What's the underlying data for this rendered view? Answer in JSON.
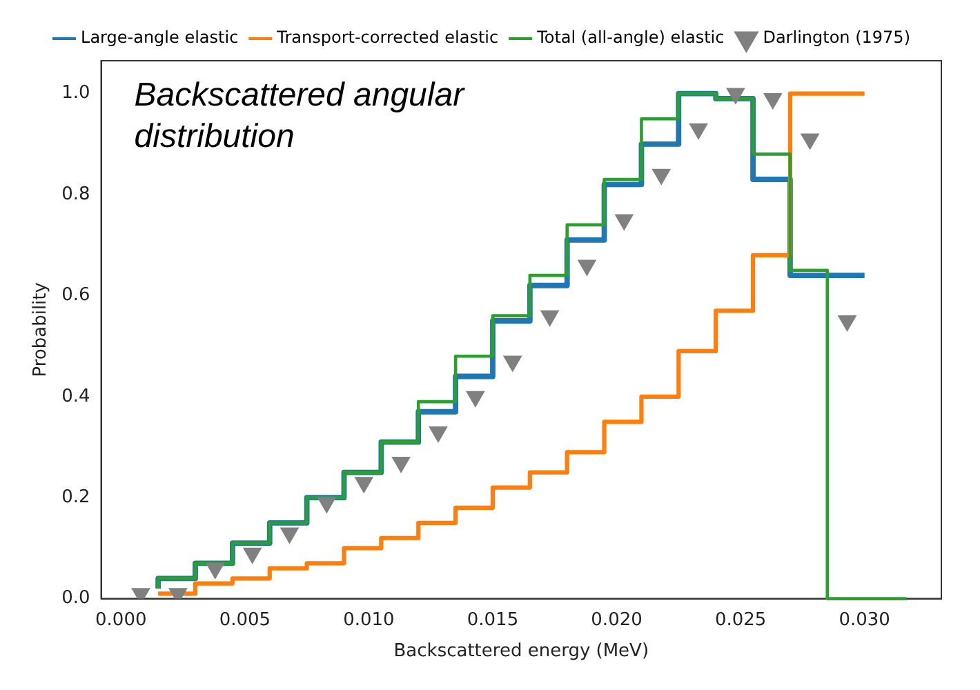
{
  "chart_data": {
    "type": "step",
    "xlabel": "Backscattered energy (MeV)",
    "ylabel": "Probability",
    "annotations": [
      "Backscattered angular distribution"
    ],
    "xlim": [
      -0.0008,
      0.0331
    ],
    "ylim": [
      0,
      1.065
    ],
    "xticks": [
      {
        "value": 0,
        "label": "0.000"
      },
      {
        "value": 0.005,
        "label": "0.005"
      },
      {
        "value": 0.01,
        "label": "0.010"
      },
      {
        "value": 0.015,
        "label": "0.015"
      },
      {
        "value": 0.02,
        "label": "0.020"
      },
      {
        "value": 0.025,
        "label": "0.025"
      },
      {
        "value": 0.03,
        "label": "0.030"
      }
    ],
    "yticks": [
      {
        "value": 0,
        "label": "0.0"
      },
      {
        "value": 0.2,
        "label": "0.2"
      },
      {
        "value": 0.4,
        "label": "0.4"
      },
      {
        "value": 0.6,
        "label": "0.6"
      },
      {
        "value": 0.8,
        "label": "0.8"
      },
      {
        "value": 1,
        "label": "1.0"
      }
    ],
    "grid": false,
    "legend": "top",
    "series": [
      {
        "name": "Large-angle elastic",
        "type": "step",
        "color": "#1f77b4",
        "x": [
          0.0015,
          0.003,
          0.0045,
          0.006,
          0.0075,
          0.009,
          0.0105,
          0.012,
          0.0135,
          0.015,
          0.0165,
          0.018,
          0.0195,
          0.021,
          0.0225,
          0.024,
          0.0255,
          0.027,
          0.0285,
          0.03
        ],
        "values": [
          0.02,
          0.04,
          0.07,
          0.11,
          0.15,
          0.2,
          0.25,
          0.31,
          0.37,
          0.44,
          0.55,
          0.62,
          0.71,
          0.82,
          0.9,
          1.0,
          0.99,
          0.83,
          0.64,
          0.64
        ]
      },
      {
        "name": "Transport-corrected elastic",
        "type": "step",
        "color": "#ff7f0e",
        "x": [
          0.0015,
          0.003,
          0.0045,
          0.006,
          0.0075,
          0.009,
          0.0105,
          0.012,
          0.0135,
          0.015,
          0.0165,
          0.018,
          0.0195,
          0.021,
          0.0225,
          0.024,
          0.0255,
          0.027,
          0.0285,
          0.03
        ],
        "values": [
          0.01,
          0.01,
          0.03,
          0.04,
          0.06,
          0.07,
          0.1,
          0.12,
          0.15,
          0.18,
          0.22,
          0.25,
          0.29,
          0.35,
          0.4,
          0.49,
          0.57,
          0.68,
          1.0,
          1.0
        ]
      },
      {
        "name": "Total (all-angle) elastic",
        "type": "step",
        "color": "#2ca02c",
        "x": [
          0.0015,
          0.003,
          0.0045,
          0.006,
          0.0075,
          0.009,
          0.0105,
          0.012,
          0.0135,
          0.015,
          0.0165,
          0.018,
          0.0195,
          0.021,
          0.0225,
          0.024,
          0.0255,
          0.027,
          0.0285,
          0.03,
          0.0317
        ],
        "values": [
          0.02,
          0.04,
          0.07,
          0.11,
          0.15,
          0.2,
          0.25,
          0.31,
          0.39,
          0.48,
          0.56,
          0.64,
          0.74,
          0.83,
          0.95,
          1.0,
          0.99,
          0.88,
          0.65,
          0,
          0
        ]
      },
      {
        "name": "Darlington (1975)",
        "type": "scatter",
        "color": "#808080",
        "marker": "triangle",
        "x": [
          0.0008,
          0.0023,
          0.0038,
          0.0053,
          0.0068,
          0.0083,
          0.0098,
          0.0113,
          0.0128,
          0.0143,
          0.0158,
          0.0173,
          0.0188,
          0.0203,
          0.0218,
          0.0233,
          0.0248,
          0.0263,
          0.0278,
          0.0293
        ],
        "values": [
          0.01,
          0.01,
          0.06,
          0.09,
          0.13,
          0.19,
          0.23,
          0.27,
          0.33,
          0.4,
          0.47,
          0.56,
          0.66,
          0.75,
          0.84,
          0.93,
          1.0,
          0.99,
          0.91,
          0.55
        ]
      }
    ]
  }
}
